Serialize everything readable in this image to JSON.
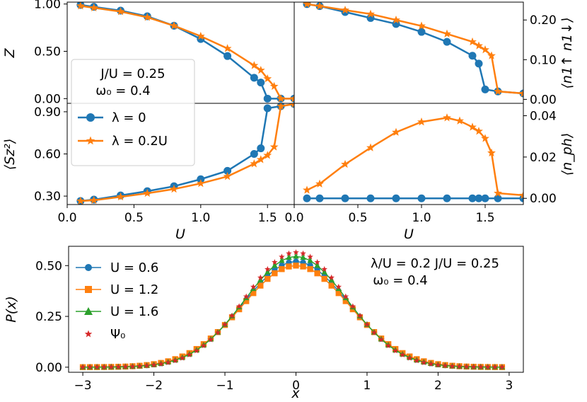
{
  "colors": {
    "blue": "#1f77b4",
    "orange": "#ff7f0e",
    "green": "#2ca02c",
    "red": "#d62728"
  },
  "chart_data": [
    {
      "id": "Z",
      "type": "line",
      "ylabel": "Z",
      "xlim": [
        0,
        1.7
      ],
      "ylim": [
        -0.05,
        1.02
      ],
      "yticks": [
        0.0,
        0.5,
        1.0
      ],
      "ytick_labels": [
        "0.00",
        "0.50",
        "1.00"
      ],
      "legend": {
        "title_lines": [
          "J/U = 0.25",
          "ω₀ = 0.4"
        ],
        "entries": [
          "λ = 0",
          "λ = 0.2U"
        ]
      },
      "series": [
        {
          "name": "λ = 0",
          "color": "#1f77b4",
          "marker": "circle",
          "x": [
            0.1,
            0.2,
            0.4,
            0.6,
            0.8,
            1.0,
            1.2,
            1.4,
            1.45,
            1.5,
            1.6,
            1.7
          ],
          "y": [
            0.99,
            0.97,
            0.93,
            0.87,
            0.77,
            0.63,
            0.45,
            0.22,
            0.17,
            0.0,
            0.0,
            0.0
          ]
        },
        {
          "name": "λ = 0.2U",
          "color": "#ff7f0e",
          "marker": "star",
          "x": [
            0.1,
            0.2,
            0.4,
            0.6,
            0.8,
            1.0,
            1.2,
            1.4,
            1.45,
            1.5,
            1.55,
            1.6,
            1.7
          ],
          "y": [
            0.98,
            0.96,
            0.92,
            0.86,
            0.77,
            0.66,
            0.53,
            0.35,
            0.3,
            0.21,
            0.13,
            0.0,
            0.0
          ]
        }
      ]
    },
    {
      "id": "n_double",
      "type": "line",
      "ylabel": "⟨n1↑ n1↓⟩",
      "xlim": [
        0,
        1.8
      ],
      "ylim": [
        -0.01,
        0.245
      ],
      "yticks": [
        0.0,
        0.1,
        0.2
      ],
      "ytick_labels": [
        "0.00",
        "0.10",
        "0.20"
      ],
      "series": [
        {
          "name": "λ = 0",
          "color": "#1f77b4",
          "marker": "circle",
          "x": [
            0.1,
            0.2,
            0.4,
            0.6,
            0.8,
            1.0,
            1.2,
            1.4,
            1.45,
            1.5,
            1.6,
            1.8
          ],
          "y": [
            0.24,
            0.235,
            0.22,
            0.205,
            0.19,
            0.17,
            0.145,
            0.11,
            0.09,
            0.025,
            0.02,
            0.015
          ]
        },
        {
          "name": "λ = 0.2U",
          "color": "#ff7f0e",
          "marker": "star",
          "x": [
            0.1,
            0.2,
            0.4,
            0.6,
            0.8,
            1.0,
            1.2,
            1.4,
            1.45,
            1.5,
            1.55,
            1.6,
            1.8
          ],
          "y": [
            0.24,
            0.235,
            0.225,
            0.215,
            0.2,
            0.185,
            0.165,
            0.145,
            0.135,
            0.125,
            0.11,
            0.02,
            0.015
          ]
        }
      ]
    },
    {
      "id": "Sz2",
      "type": "line",
      "ylabel": "⟨Sz²⟩",
      "xlabel": "U",
      "xlim": [
        0,
        1.7
      ],
      "ylim": [
        0.24,
        0.96
      ],
      "xticks": [
        0.0,
        0.5,
        1.0,
        1.5
      ],
      "xtick_labels": [
        "0.0",
        "0.5",
        "1.0",
        "1.5"
      ],
      "yticks": [
        0.3,
        0.6,
        0.9
      ],
      "ytick_labels": [
        "0.30",
        "0.60",
        "0.90"
      ],
      "series": [
        {
          "name": "λ = 0",
          "color": "#1f77b4",
          "marker": "circle",
          "x": [
            0.1,
            0.2,
            0.4,
            0.6,
            0.8,
            1.0,
            1.2,
            1.4,
            1.45,
            1.5,
            1.6,
            1.7
          ],
          "y": [
            0.265,
            0.275,
            0.305,
            0.335,
            0.37,
            0.42,
            0.48,
            0.6,
            0.64,
            0.925,
            0.94,
            0.955
          ]
        },
        {
          "name": "λ = 0.2U",
          "color": "#ff7f0e",
          "marker": "star",
          "x": [
            0.1,
            0.2,
            0.4,
            0.6,
            0.8,
            1.0,
            1.2,
            1.4,
            1.45,
            1.5,
            1.55,
            1.6,
            1.7
          ],
          "y": [
            0.265,
            0.27,
            0.295,
            0.32,
            0.35,
            0.39,
            0.44,
            0.53,
            0.56,
            0.59,
            0.65,
            0.94,
            0.955
          ]
        }
      ]
    },
    {
      "id": "n_ph",
      "type": "line",
      "ylabel": "⟨n_ph⟩",
      "xlabel": "U",
      "xlim": [
        0,
        1.8
      ],
      "ylim": [
        -0.003,
        0.046
      ],
      "xticks": [
        0.0,
        0.5,
        1.0,
        1.5
      ],
      "xtick_labels": [
        "0.0",
        "0.5",
        "1.0",
        "1.5"
      ],
      "yticks": [
        0.0,
        0.02,
        0.04
      ],
      "ytick_labels": [
        "0.00",
        "0.02",
        "0.04"
      ],
      "series": [
        {
          "name": "λ = 0",
          "color": "#1f77b4",
          "marker": "circle",
          "x": [
            0.1,
            0.2,
            0.4,
            0.6,
            0.8,
            1.0,
            1.2,
            1.4,
            1.45,
            1.5,
            1.6,
            1.8
          ],
          "y": [
            0,
            0,
            0,
            0,
            0,
            0,
            0,
            0,
            0,
            0,
            0,
            0
          ]
        },
        {
          "name": "λ = 0.2U",
          "color": "#ff7f0e",
          "marker": "star",
          "x": [
            0.1,
            0.2,
            0.4,
            0.6,
            0.8,
            1.0,
            1.2,
            1.3,
            1.4,
            1.45,
            1.5,
            1.55,
            1.6,
            1.8
          ],
          "y": [
            0.004,
            0.007,
            0.0165,
            0.0245,
            0.032,
            0.037,
            0.039,
            0.0375,
            0.0345,
            0.0325,
            0.029,
            0.022,
            0.0025,
            0.0015
          ]
        }
      ]
    },
    {
      "id": "Px",
      "type": "scatter",
      "ylabel": "P(x)",
      "xlabel": "x",
      "xlim": [
        -3.2,
        3.2
      ],
      "ylim": [
        -0.025,
        0.595
      ],
      "xticks": [
        -3,
        -2,
        -1,
        0,
        1,
        2,
        3
      ],
      "xtick_labels": [
        "−3",
        "−2",
        "−1",
        "0",
        "1",
        "2",
        "3"
      ],
      "yticks": [
        0.0,
        0.25,
        0.5
      ],
      "ytick_labels": [
        "0.00",
        "0.25",
        "0.50"
      ],
      "x_grid": {
        "start": -3.0,
        "stop": 2.9,
        "step": 0.1
      },
      "annotation": {
        "line1": "λ/U = 0.2   J/U = 0.25",
        "line2": "ω₀ = 0.4"
      },
      "series": [
        {
          "name": "U = 0.6",
          "color": "#1f77b4",
          "marker": "circle",
          "amplitude": 0.52
        },
        {
          "name": "U = 1.2",
          "color": "#ff7f0e",
          "marker": "square",
          "amplitude": 0.5
        },
        {
          "name": "U = 1.6",
          "color": "#2ca02c",
          "marker": "triangle",
          "amplitude": 0.545
        },
        {
          "name": "Ψ₀",
          "color": "#d62728",
          "marker": "star",
          "amplitude": 0.565
        }
      ]
    }
  ]
}
